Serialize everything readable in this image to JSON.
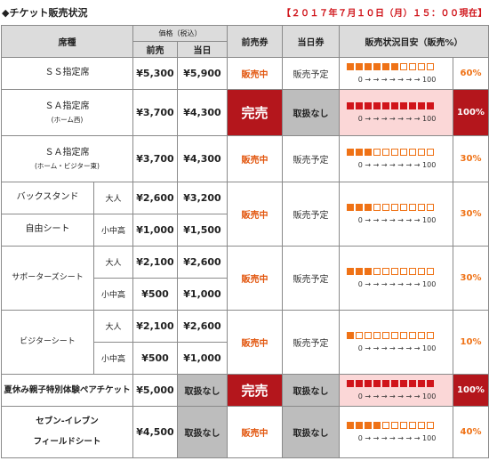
{
  "page": {
    "heading": "◆チケット販売状況",
    "as_of": "【２０１７年７月１０日（月）１５：００現在】"
  },
  "headers": {
    "seat": "席種",
    "price": "価格（税込）",
    "advance": "前売",
    "same_day": "当日",
    "adv_ticket": "前売券",
    "day_ticket": "当日券",
    "status": "販売状況目安（販売%）"
  },
  "scale_text": "0 → → → → → → → 100",
  "rows": {
    "ss": {
      "seat": "ＳＳ指定席",
      "adv": "¥5,300",
      "day": "¥5,900",
      "adv_ticket": "販売中",
      "day_ticket": "販売予定",
      "filled": 6,
      "pct": "60%"
    },
    "sa_home": {
      "seat": "ＳＡ指定席",
      "sub": "(ホーム西)",
      "adv": "¥3,700",
      "day": "¥4,300",
      "adv_ticket": "完売",
      "day_ticket": "取扱なし",
      "filled": 10,
      "pct": "100%"
    },
    "sa_vis": {
      "seat": "ＳＡ指定席",
      "sub": "(ホーム・ビジター東)",
      "adv": "¥3,700",
      "day": "¥4,300",
      "adv_ticket": "販売中",
      "day_ticket": "販売予定",
      "filled": 3,
      "pct": "30%"
    },
    "back": {
      "seat_1": "バックスタンド",
      "seat_2": "自由シート",
      "adult": "大人",
      "child": "小中高",
      "adv_adult": "¥2,600",
      "day_adult": "¥3,200",
      "adv_child": "¥1,000",
      "day_child": "¥1,500",
      "adv_ticket": "販売中",
      "day_ticket": "販売予定",
      "filled": 3,
      "pct": "30%"
    },
    "sup": {
      "seat": "サポーターズシート",
      "adult": "大人",
      "child": "小中高",
      "adv_adult": "¥2,100",
      "day_adult": "¥2,600",
      "adv_child": "¥500",
      "day_child": "¥1,000",
      "adv_ticket": "販売中",
      "day_ticket": "販売予定",
      "filled": 3,
      "pct": "30%"
    },
    "vis": {
      "seat": "ビジターシート",
      "adult": "大人",
      "child": "小中高",
      "adv_adult": "¥2,100",
      "day_adult": "¥2,600",
      "adv_child": "¥500",
      "day_child": "¥1,000",
      "adv_ticket": "販売中",
      "day_ticket": "販売予定",
      "filled": 1,
      "pct": "10%"
    },
    "pair": {
      "seat": "夏休み親子特別体験ペアチケット",
      "adv": "¥5,000",
      "day": "取扱なし",
      "adv_ticket": "完売",
      "day_ticket": "取扱なし",
      "filled": 10,
      "pct": "100%"
    },
    "seven": {
      "seat_1": "セブン-イレブン",
      "seat_2": "フィールドシート",
      "adv": "¥4,500",
      "day": "取扱なし",
      "adv_ticket": "販売中",
      "day_ticket": "取扱なし",
      "filled": 4,
      "pct": "40%"
    }
  },
  "colors": {
    "accent_orange": "#ef7216",
    "soldout_red": "#b4161c",
    "header_gray": "#dcdcdc",
    "na_gray": "#bdbdbd"
  }
}
